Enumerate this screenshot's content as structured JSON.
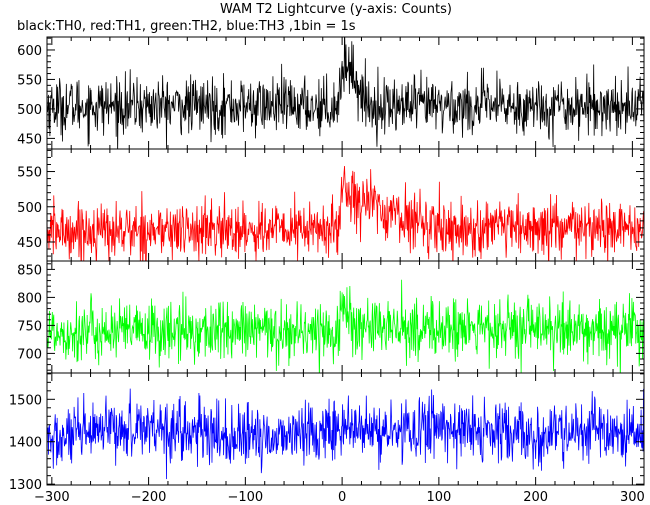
{
  "chart_data": {
    "type": "line",
    "title": "WAM T2 Lightcurve (y-axis: Counts)",
    "subtitle": "black:TH0, red:TH1, green:TH2, blue:TH3 ,1bin = 1s",
    "xlim": [
      -305,
      312
    ],
    "x_ticks": [
      -300,
      -200,
      -100,
      0,
      100,
      200,
      300
    ],
    "x_tick_labels": [
      "−300",
      "−200",
      "−100",
      "0",
      "100",
      "200",
      "300"
    ],
    "grid": false,
    "panels": [
      {
        "name": "TH0",
        "color": "#000000",
        "ylim": [
          432,
          622
        ],
        "y_ticks": [
          450,
          500,
          550,
          600
        ],
        "y_tick_labels": [
          "450",
          "500",
          "550",
          "600"
        ],
        "baseline": 505,
        "noise_sd": 24,
        "profile": [
          [
            -305,
            505
          ],
          [
            -6,
            505
          ],
          [
            2,
            575
          ],
          [
            6,
            580
          ],
          [
            12,
            560
          ],
          [
            20,
            520
          ],
          [
            30,
            505
          ],
          [
            312,
            505
          ]
        ]
      },
      {
        "name": "TH1",
        "color": "#ff0000",
        "ylim": [
          423,
          582
        ],
        "y_ticks": [
          450,
          500,
          550
        ],
        "y_tick_labels": [
          "450",
          "500",
          "550"
        ],
        "baseline": 468,
        "noise_sd": 20,
        "profile": [
          [
            -305,
            465
          ],
          [
            -3,
            468
          ],
          [
            0,
            530
          ],
          [
            20,
            510
          ],
          [
            50,
            490
          ],
          [
            90,
            475
          ],
          [
            120,
            468
          ],
          [
            312,
            468
          ]
        ]
      },
      {
        "name": "TH2",
        "color": "#00ff00",
        "ylim": [
          665,
          865
        ],
        "y_ticks": [
          700,
          750,
          800,
          850
        ],
        "y_tick_labels": [
          "700",
          "750",
          "800",
          "850"
        ],
        "baseline": 740,
        "noise_sd": 27,
        "profile": [
          [
            -305,
            738
          ],
          [
            -3,
            740
          ],
          [
            0,
            790
          ],
          [
            8,
            760
          ],
          [
            20,
            745
          ],
          [
            312,
            740
          ]
        ]
      },
      {
        "name": "TH3",
        "color": "#0000ff",
        "ylim": [
          1298,
          1562
        ],
        "y_ticks": [
          1300,
          1400,
          1500
        ],
        "y_tick_labels": [
          "1300",
          "1400",
          "1500"
        ],
        "baseline": 1418,
        "noise_sd": 36,
        "profile": [
          [
            -305,
            1400
          ],
          [
            -200,
            1440
          ],
          [
            -150,
            1420
          ],
          [
            -100,
            1405
          ],
          [
            -50,
            1420
          ],
          [
            0,
            1430
          ],
          [
            50,
            1420
          ],
          [
            100,
            1440
          ],
          [
            150,
            1420
          ],
          [
            200,
            1410
          ],
          [
            250,
            1425
          ],
          [
            312,
            1410
          ]
        ]
      }
    ]
  }
}
